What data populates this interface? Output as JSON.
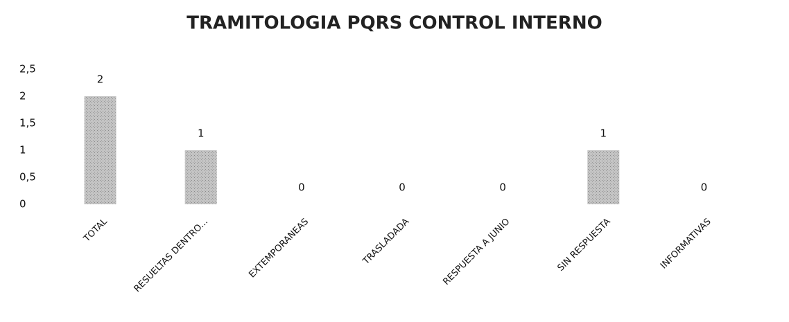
{
  "chart_data": {
    "type": "bar",
    "title": "TRAMITOLOGIA PQRS CONTROL INTERNO",
    "categories": [
      "TOTAL",
      "RESUELTAS DENTRO...",
      "EXTEMPORANEAS",
      "TRASLADADA",
      "RESPUESTA A JUNIO",
      "SIN RESPUESTA",
      "INFORMATIVAS"
    ],
    "values": [
      2,
      1,
      0,
      0,
      0,
      1,
      0
    ],
    "color": "#bdbdbd",
    "ylim": [
      0,
      2.5
    ],
    "yticks": [
      0,
      {
        "value": 0.5,
        "label": "0,5"
      },
      1,
      {
        "value": 1.5,
        "label": "1,5"
      },
      2,
      {
        "value": 2.5,
        "label": "2,5"
      }
    ],
    "grid": false
  }
}
